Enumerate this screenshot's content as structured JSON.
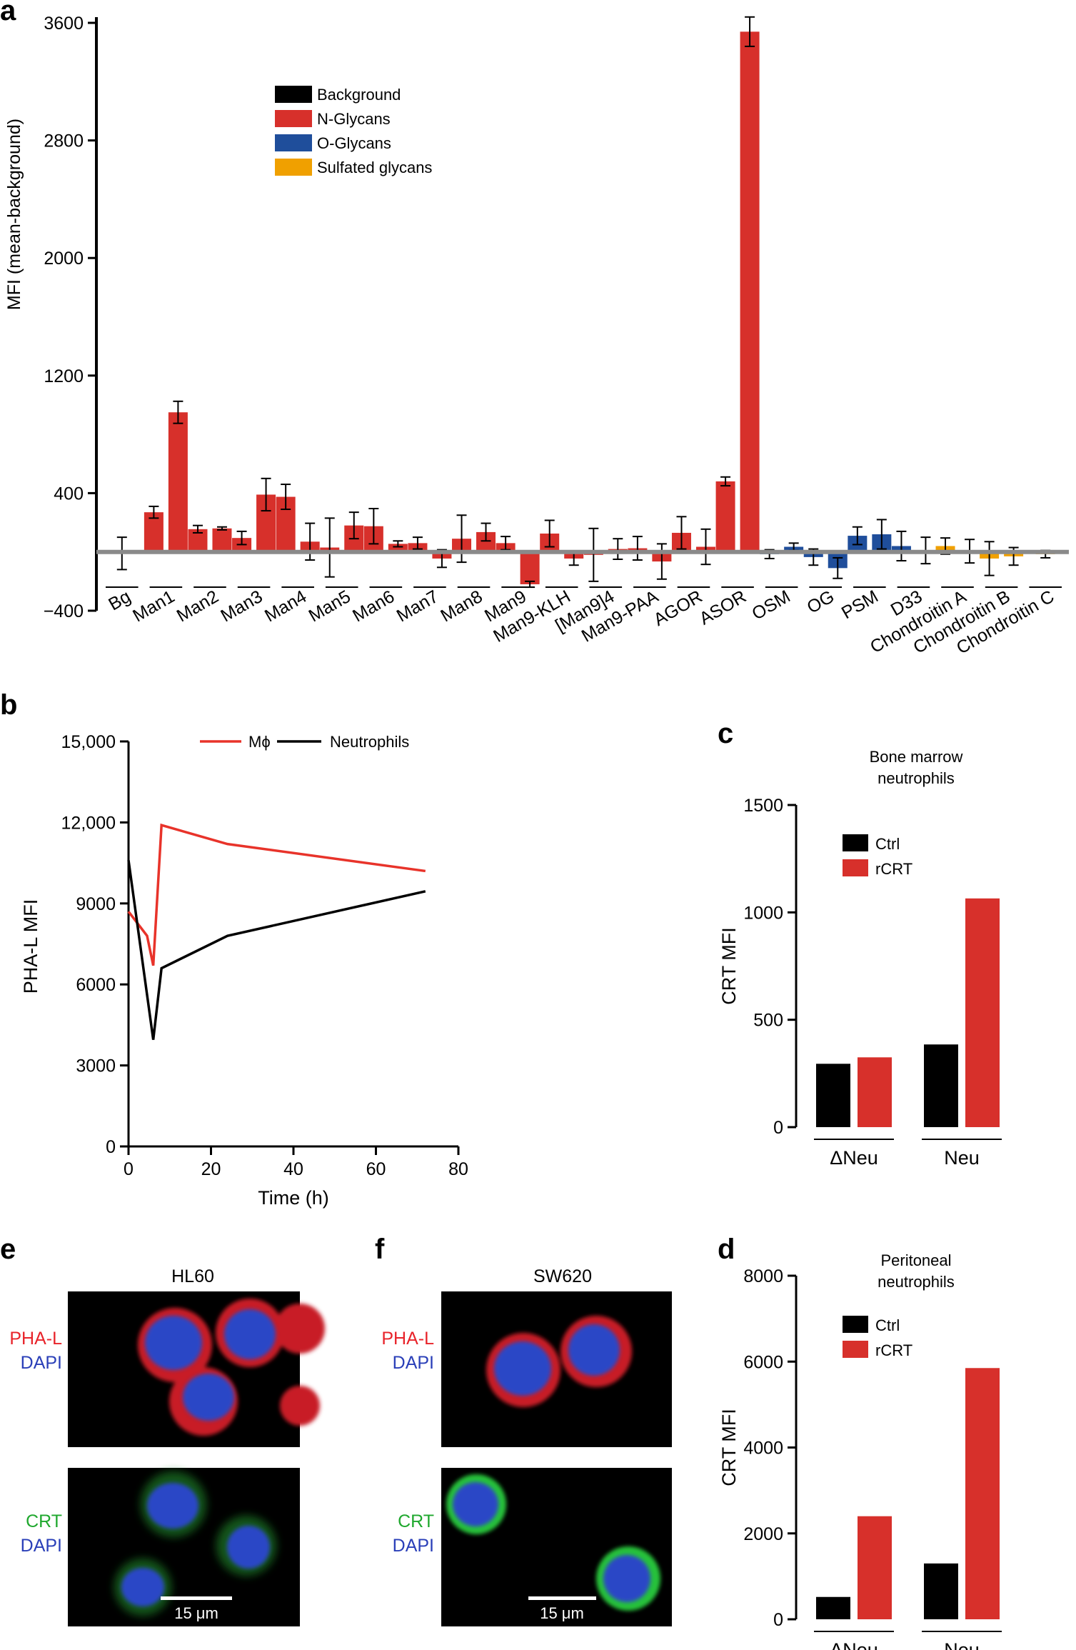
{
  "colors": {
    "background": "#000000",
    "n_glycans": "#d7302b",
    "o_glycans": "#1f4e9b",
    "sulfated": "#f0a000",
    "macrophage_line": "#e8332a",
    "neutrophil_line": "#000000",
    "ctrl": "#000000",
    "rcrt": "#d7302b",
    "pha_l": "#e8232a",
    "dapi": "#2a3fb8",
    "crt": "#1fa82e"
  },
  "chart_data": [
    {
      "panel": "a",
      "type": "bar",
      "title": "",
      "xlabel": "",
      "ylabel": "MFI (mean-background)",
      "ylim": [
        -400,
        3600
      ],
      "yticks": [
        "3600",
        "2800",
        "2000",
        "1200",
        "400",
        "−400"
      ],
      "legend": [
        "Background",
        "N-Glycans",
        "O-Glycans",
        "Sulfated glycans"
      ],
      "groups": [
        {
          "label": "Bg",
          "bars": [
            {
              "value": -10,
              "err": 110,
              "class": "background"
            }
          ]
        },
        {
          "label": "Man1",
          "bars": [
            {
              "value": 270,
              "err": 40,
              "class": "n"
            },
            {
              "value": 950,
              "err": 75,
              "class": "n"
            }
          ]
        },
        {
          "label": "Man2",
          "bars": [
            {
              "value": 155,
              "err": 25,
              "class": "n"
            },
            {
              "value": 160,
              "err": 10,
              "class": "n"
            }
          ]
        },
        {
          "label": "Man3",
          "bars": [
            {
              "value": 95,
              "err": 45,
              "class": "n"
            },
            {
              "value": 390,
              "err": 110,
              "class": "n"
            }
          ]
        },
        {
          "label": "Man4",
          "bars": [
            {
              "value": 375,
              "err": 85,
              "class": "n"
            },
            {
              "value": 70,
              "err": 125,
              "class": "n"
            }
          ]
        },
        {
          "label": "Man5",
          "bars": [
            {
              "value": 30,
              "err": 200,
              "class": "n"
            },
            {
              "value": 180,
              "err": 90,
              "class": "n"
            }
          ]
        },
        {
          "label": "Man6",
          "bars": [
            {
              "value": 175,
              "err": 120,
              "class": "n"
            },
            {
              "value": 55,
              "err": 20,
              "class": "n"
            }
          ]
        },
        {
          "label": "Man7",
          "bars": [
            {
              "value": 60,
              "err": 40,
              "class": "n"
            },
            {
              "value": -45,
              "err": 60,
              "class": "n"
            }
          ]
        },
        {
          "label": "Man8",
          "bars": [
            {
              "value": 90,
              "err": 160,
              "class": "n"
            },
            {
              "value": 135,
              "err": 60,
              "class": "n"
            }
          ]
        },
        {
          "label": "Man9",
          "bars": [
            {
              "value": 60,
              "err": 45,
              "class": "n"
            },
            {
              "value": -220,
              "err": 20,
              "class": "n"
            }
          ]
        },
        {
          "label": "Man9-KLH",
          "bars": [
            {
              "value": 125,
              "err": 90,
              "class": "n"
            },
            {
              "value": -45,
              "err": 45,
              "class": "n"
            }
          ]
        },
        {
          "label": "[Man9]4",
          "bars": [
            {
              "value": -20,
              "err": 180,
              "class": "n"
            },
            {
              "value": 20,
              "err": 70,
              "class": "n"
            }
          ]
        },
        {
          "label": "Man9-PAA",
          "bars": [
            {
              "value": 25,
              "err": 80,
              "class": "n"
            },
            {
              "value": -65,
              "err": 120,
              "class": "n"
            }
          ]
        },
        {
          "label": "AGOR",
          "bars": [
            {
              "value": 130,
              "err": 110,
              "class": "n"
            },
            {
              "value": 35,
              "err": 120,
              "class": "n"
            }
          ]
        },
        {
          "label": "ASOR",
          "bars": [
            {
              "value": 480,
              "err": 30,
              "class": "n"
            },
            {
              "value": 3540,
              "err": 100,
              "class": "n"
            }
          ]
        },
        {
          "label": "OSM",
          "bars": [
            {
              "value": -15,
              "err": 30,
              "class": "o"
            },
            {
              "value": 35,
              "err": 25,
              "class": "o"
            }
          ]
        },
        {
          "label": "OG",
          "bars": [
            {
              "value": -35,
              "err": 55,
              "class": "o"
            },
            {
              "value": -110,
              "err": 70,
              "class": "o"
            }
          ]
        },
        {
          "label": "PSM",
          "bars": [
            {
              "value": 110,
              "err": 60,
              "class": "o"
            },
            {
              "value": 120,
              "err": 100,
              "class": "o"
            }
          ]
        },
        {
          "label": "D33",
          "bars": [
            {
              "value": 40,
              "err": 100,
              "class": "o"
            },
            {
              "value": 10,
              "err": 90,
              "class": "o"
            }
          ]
        },
        {
          "label": "Chondroitin A",
          "bars": [
            {
              "value": 40,
              "err": 55,
              "class": "s"
            },
            {
              "value": 5,
              "err": 80,
              "class": "s"
            }
          ]
        },
        {
          "label": "Chondroitin B",
          "bars": [
            {
              "value": -45,
              "err": 115,
              "class": "s"
            },
            {
              "value": -30,
              "err": 60,
              "class": "s"
            }
          ]
        },
        {
          "label": "Chondroitin C",
          "bars": [
            {
              "value": -15,
              "err": 25,
              "class": "s"
            }
          ]
        }
      ]
    },
    {
      "panel": "b",
      "type": "line",
      "xlabel": "Time (h)",
      "ylabel": "PHA-L MFI",
      "xlim": [
        0,
        80
      ],
      "ylim": [
        0,
        15000
      ],
      "xticks": [
        "0",
        "20",
        "40",
        "60",
        "80"
      ],
      "yticks": [
        "15,000",
        "12,000",
        "9000",
        "6000",
        "3000",
        "0"
      ],
      "series": [
        {
          "name": "Mϕ",
          "x": [
            0,
            4.5,
            6,
            8,
            24,
            72
          ],
          "y": [
            8700,
            7800,
            6700,
            11900,
            11200,
            10200
          ]
        },
        {
          "name": "Neutrophils",
          "x": [
            0,
            6,
            8,
            24,
            72
          ],
          "y": [
            10600,
            3950,
            6600,
            7800,
            9450
          ]
        }
      ]
    },
    {
      "panel": "c",
      "type": "bar",
      "title": "Bone marrow neutrophils",
      "ylabel": "CRT MFI",
      "ylim": [
        0,
        1500
      ],
      "yticks": [
        "1500",
        "1000",
        "500",
        "0"
      ],
      "categories": [
        "ΔNeu",
        "Neu"
      ],
      "series": [
        {
          "name": "Ctrl",
          "values": [
            295,
            385
          ]
        },
        {
          "name": "rCRT",
          "values": [
            325,
            1065
          ]
        }
      ]
    },
    {
      "panel": "d",
      "type": "bar",
      "title": "Peritoneal neutrophils",
      "ylabel": "CRT MFI",
      "ylim": [
        0,
        8000
      ],
      "yticks": [
        "8000",
        "6000",
        "4000",
        "2000",
        "0"
      ],
      "categories": [
        "ΔNeu",
        "Neu"
      ],
      "series": [
        {
          "name": "Ctrl",
          "values": [
            520,
            1300
          ]
        },
        {
          "name": "rCRT",
          "values": [
            2400,
            5850
          ]
        }
      ]
    }
  ],
  "micrographs": {
    "e": {
      "title": "HL60",
      "top_label": [
        "PHA-L",
        "DAPI"
      ],
      "bottom_label": [
        "CRT",
        "DAPI"
      ],
      "scale": "15 μm"
    },
    "f": {
      "title": "SW620",
      "top_label": [
        "PHA-L",
        "DAPI"
      ],
      "bottom_label": [
        "CRT",
        "DAPI"
      ],
      "scale": "15 μm"
    }
  },
  "panel_labels": {
    "a": "a",
    "b": "b",
    "c": "c",
    "d": "d",
    "e": "e",
    "f": "f"
  }
}
